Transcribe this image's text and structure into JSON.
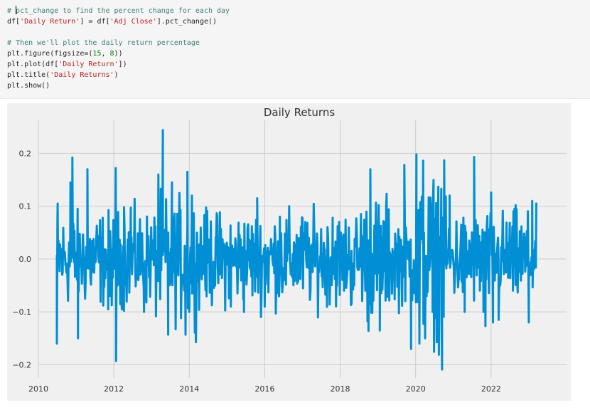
{
  "code_cell": {
    "lines": [
      {
        "segments": [
          {
            "cls": "cmt",
            "text": "# "
          },
          {
            "cls": "cursor",
            "text": ""
          },
          {
            "cls": "cmt",
            "text": "pct_change to find the percent change for each day"
          }
        ]
      },
      {
        "segments": [
          {
            "cls": "",
            "text": "df["
          },
          {
            "cls": "str",
            "text": "'Daily Return'"
          },
          {
            "cls": "",
            "text": "] = df["
          },
          {
            "cls": "str",
            "text": "'Adj Close'"
          },
          {
            "cls": "",
            "text": "].pct_change()"
          }
        ]
      },
      {
        "segments": [
          {
            "cls": "",
            "text": ""
          }
        ]
      },
      {
        "segments": [
          {
            "cls": "cmt",
            "text": "# Then we'll plot the daily return percentage"
          }
        ]
      },
      {
        "segments": [
          {
            "cls": "",
            "text": "plt.figure(figsize=("
          },
          {
            "cls": "num",
            "text": "15"
          },
          {
            "cls": "",
            "text": ", "
          },
          {
            "cls": "num",
            "text": "8"
          },
          {
            "cls": "",
            "text": "))"
          }
        ]
      },
      {
        "segments": [
          {
            "cls": "",
            "text": "plt.plot(df["
          },
          {
            "cls": "str",
            "text": "'Daily Return'"
          },
          {
            "cls": "",
            "text": "])"
          }
        ]
      },
      {
        "segments": [
          {
            "cls": "",
            "text": "plt.title("
          },
          {
            "cls": "str",
            "text": "'Daily Returns'"
          },
          {
            "cls": "",
            "text": ")"
          }
        ]
      },
      {
        "segments": [
          {
            "cls": "",
            "text": "plt.show()"
          }
        ]
      }
    ]
  },
  "chart_data": {
    "type": "line",
    "title": "Daily Returns",
    "xlabel": "",
    "ylabel": "",
    "xlim": [
      2010.0,
      2024.0
    ],
    "ylim": [
      -0.225,
      0.2625
    ],
    "x_ticks": [
      2010,
      2012,
      2014,
      2016,
      2018,
      2020,
      2022
    ],
    "y_ticks": [
      -0.2,
      -0.1,
      0.0,
      0.1,
      0.2
    ],
    "y_tick_labels": [
      "−0.2",
      "−0.1",
      "0.0",
      "0.1",
      "0.2"
    ],
    "grid": true,
    "style": "fivethirtyeight",
    "line_color": "#008fd5",
    "background_color": "#f0f0f0",
    "x_start": 2010.49,
    "x_end": 2023.2,
    "typical_range": [
      -0.05,
      0.05
    ],
    "spikes": [
      {
        "x": 2010.49,
        "y": -0.16
      },
      {
        "x": 2010.51,
        "y": 0.105
      },
      {
        "x": 2010.85,
        "y": 0.145
      },
      {
        "x": 2010.9,
        "y": 0.192
      },
      {
        "x": 2011.05,
        "y": -0.15
      },
      {
        "x": 2011.3,
        "y": 0.17
      },
      {
        "x": 2011.85,
        "y": -0.095
      },
      {
        "x": 2011.9,
        "y": -0.07
      },
      {
        "x": 2012.0,
        "y": 0.073
      },
      {
        "x": 2012.05,
        "y": 0.172
      },
      {
        "x": 2012.06,
        "y": -0.193
      },
      {
        "x": 2012.27,
        "y": 0.098
      },
      {
        "x": 2012.45,
        "y": 0.097
      },
      {
        "x": 2012.8,
        "y": -0.1
      },
      {
        "x": 2013.18,
        "y": 0.16
      },
      {
        "x": 2013.3,
        "y": 0.244
      },
      {
        "x": 2013.44,
        "y": -0.143
      },
      {
        "x": 2013.54,
        "y": 0.145
      },
      {
        "x": 2013.9,
        "y": -0.143
      },
      {
        "x": 2013.95,
        "y": 0.165
      },
      {
        "x": 2014.0,
        "y": -0.1
      },
      {
        "x": 2014.07,
        "y": 0.12
      },
      {
        "x": 2014.4,
        "y": 0.083
      },
      {
        "x": 2015.1,
        "y": -0.09
      },
      {
        "x": 2015.45,
        "y": -0.1
      },
      {
        "x": 2015.8,
        "y": 0.115
      },
      {
        "x": 2016.0,
        "y": -0.09
      },
      {
        "x": 2016.4,
        "y": 0.08
      },
      {
        "x": 2017.0,
        "y": 0.078
      },
      {
        "x": 2017.8,
        "y": 0.078
      },
      {
        "x": 2018.3,
        "y": -0.085
      },
      {
        "x": 2018.55,
        "y": 0.085
      },
      {
        "x": 2018.75,
        "y": -0.136
      },
      {
        "x": 2018.8,
        "y": 0.17
      },
      {
        "x": 2019.05,
        "y": -0.135
      },
      {
        "x": 2019.22,
        "y": 0.1
      },
      {
        "x": 2019.7,
        "y": 0.178
      },
      {
        "x": 2019.88,
        "y": -0.17
      },
      {
        "x": 2020.02,
        "y": 0.198
      },
      {
        "x": 2020.1,
        "y": -0.16
      },
      {
        "x": 2020.2,
        "y": 0.186
      },
      {
        "x": 2020.25,
        "y": -0.15
      },
      {
        "x": 2020.45,
        "y": -0.1
      },
      {
        "x": 2020.6,
        "y": 0.137
      },
      {
        "x": 2020.68,
        "y": 0.133
      },
      {
        "x": 2020.7,
        "y": -0.209
      },
      {
        "x": 2020.9,
        "y": 0.12
      },
      {
        "x": 2021.3,
        "y": -0.1
      },
      {
        "x": 2021.55,
        "y": 0.193
      },
      {
        "x": 2021.8,
        "y": -0.1
      },
      {
        "x": 2021.85,
        "y": -0.127
      },
      {
        "x": 2022.0,
        "y": 0.126
      },
      {
        "x": 2022.05,
        "y": -0.12
      },
      {
        "x": 2022.2,
        "y": -0.115
      },
      {
        "x": 2022.65,
        "y": 0.102
      },
      {
        "x": 2023.0,
        "y": -0.12
      },
      {
        "x": 2023.09,
        "y": 0.11
      }
    ]
  }
}
